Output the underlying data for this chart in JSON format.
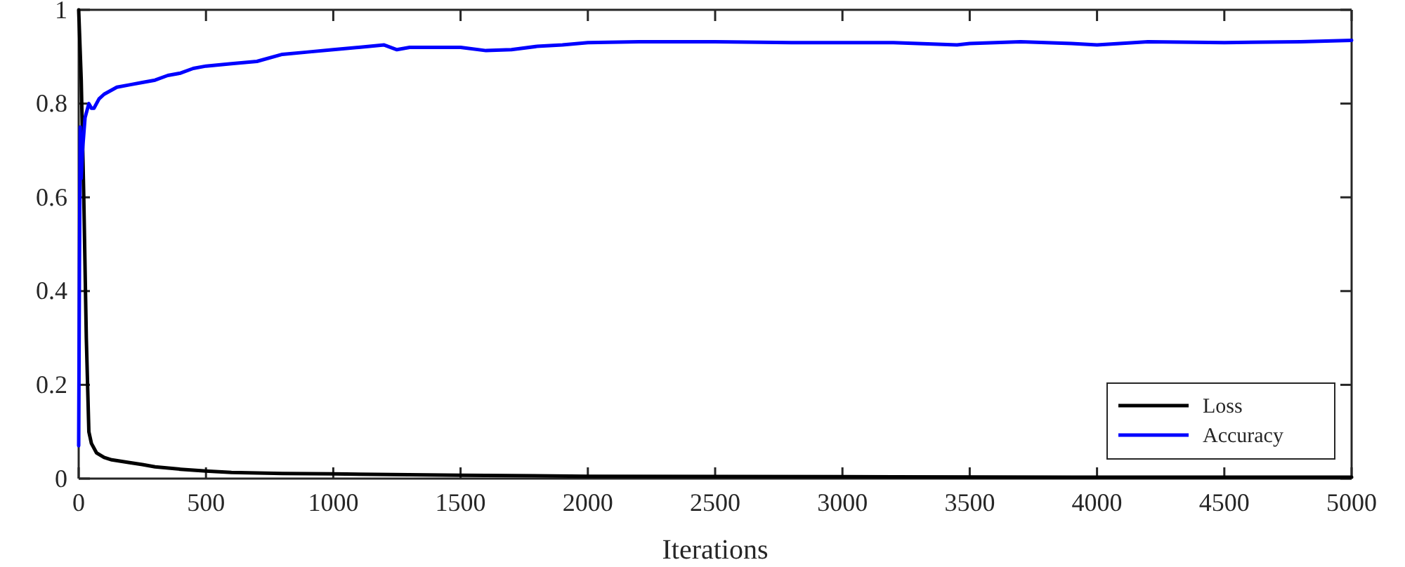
{
  "chart_data": {
    "type": "line",
    "xlabel": "Iterations",
    "xlim": [
      0,
      5000
    ],
    "xticks": [
      0,
      500,
      1000,
      1500,
      2000,
      2500,
      3000,
      3500,
      4000,
      4500,
      5000
    ],
    "ylim": [
      0,
      1
    ],
    "yticks": [
      0,
      0.2,
      0.4,
      0.6,
      0.8,
      1
    ],
    "grid": false,
    "legend": "bottom right",
    "line_style": "solid",
    "marker": "none",
    "series": [
      {
        "name": "Loss",
        "color": "#000000",
        "x": [
          0,
          10,
          20,
          30,
          40,
          50,
          70,
          100,
          130,
          200,
          250,
          300,
          400,
          500,
          600,
          800,
          1000,
          1500,
          2000,
          3000,
          4000,
          5000
        ],
        "values": [
          1,
          0.85,
          0.6,
          0.3,
          0.1,
          0.075,
          0.055,
          0.045,
          0.04,
          0.034,
          0.03,
          0.025,
          0.02,
          0.016,
          0.013,
          0.011,
          0.01,
          0.007,
          0.005,
          0.004,
          0.003,
          0.003
        ]
      },
      {
        "name": "Accuracy",
        "color": "#0000ff",
        "x": [
          0,
          3,
          6,
          10,
          15,
          25,
          40,
          50,
          60,
          80,
          100,
          150,
          200,
          250,
          300,
          350,
          400,
          450,
          500,
          600,
          700,
          800,
          900,
          1000,
          1100,
          1200,
          1250,
          1300,
          1400,
          1500,
          1600,
          1700,
          1800,
          1900,
          2000,
          2200,
          2500,
          2800,
          3000,
          3200,
          3450,
          3500,
          3700,
          3900,
          4000,
          4200,
          4500,
          4800,
          5000
        ],
        "values": [
          0.07,
          0.45,
          0.75,
          0.64,
          0.7,
          0.77,
          0.8,
          0.79,
          0.79,
          0.81,
          0.82,
          0.835,
          0.84,
          0.845,
          0.85,
          0.86,
          0.865,
          0.875,
          0.88,
          0.885,
          0.89,
          0.905,
          0.91,
          0.915,
          0.92,
          0.925,
          0.915,
          0.92,
          0.92,
          0.92,
          0.913,
          0.915,
          0.922,
          0.925,
          0.93,
          0.932,
          0.932,
          0.93,
          0.93,
          0.93,
          0.925,
          0.928,
          0.932,
          0.928,
          0.925,
          0.932,
          0.93,
          0.932,
          0.935
        ]
      }
    ]
  }
}
